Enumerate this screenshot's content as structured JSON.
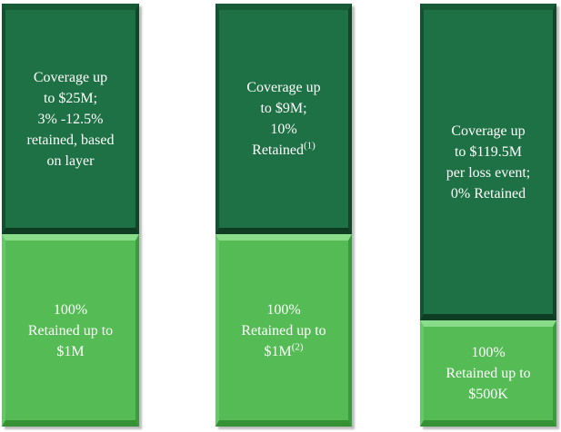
{
  "colors": {
    "background": "#FFFFFF",
    "coverage_block_face": "#1E7144",
    "coverage_block_bevel_dark": "#0F3D23",
    "retention_block_face": "#55BB55",
    "retention_block_bevel_light": "#89DC89",
    "retention_block_bevel_dark": "#349134",
    "text": "#FFFFFF",
    "drop_shadow": "#787878"
  },
  "towers": [
    {
      "name": "tower-1",
      "coverage": {
        "line1": "Coverage up",
        "line2": "to $25M;",
        "line3": "3% -12.5%",
        "line4": "retained, based",
        "line5": "on layer"
      },
      "retention": {
        "line1": "100%",
        "line2": "Retained up to",
        "line3": "$1M"
      }
    },
    {
      "name": "tower-2",
      "coverage": {
        "line1": "Coverage up",
        "line2": "to $9M;",
        "line3": "10%",
        "line4": "Retained",
        "line4_sup": "(1)"
      },
      "retention": {
        "line1": "100%",
        "line2": "Retained up to",
        "line3": "$1M",
        "line3_sup": "(2)"
      }
    },
    {
      "name": "tower-3",
      "coverage": {
        "line1": "Coverage up",
        "line2": "to $119.5M",
        "line3": "per loss event;",
        "line4": "0% Retained"
      },
      "retention": {
        "line1": "100%",
        "line2": "Retained up to",
        "line3": "$500K"
      }
    }
  ]
}
